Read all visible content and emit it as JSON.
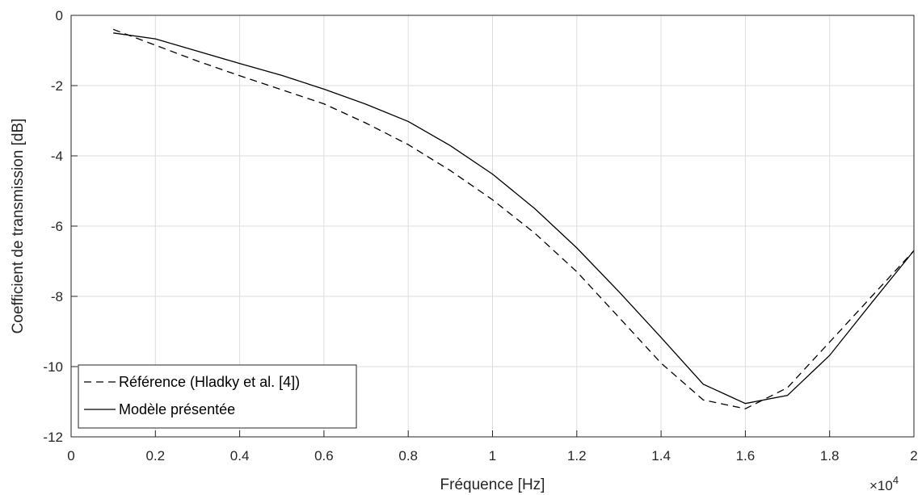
{
  "chart_data": {
    "type": "line",
    "title": "",
    "xlabel": "Fréquence [Hz]",
    "ylabel": "Coefficient de transmission [dB]",
    "xlim": [
      0,
      2
    ],
    "ylim": [
      -12,
      0
    ],
    "x_multiplier_label": "×10",
    "x_multiplier_exponent": "4",
    "x_ticks": [
      0,
      0.2,
      0.4,
      0.6,
      0.8,
      1,
      1.2,
      1.4,
      1.6,
      1.8,
      2
    ],
    "x_tick_labels": [
      "0",
      "0.2",
      "0.4",
      "0.6",
      "0.8",
      "1",
      "1.2",
      "1.4",
      "1.6",
      "1.8",
      "2"
    ],
    "y_ticks": [
      0,
      -2,
      -4,
      -6,
      -8,
      -10,
      -12
    ],
    "y_tick_labels": [
      "0",
      "-2",
      "-4",
      "-6",
      "-8",
      "-10",
      "-12"
    ],
    "grid": true,
    "legend_position": "bottom-left",
    "series": [
      {
        "name": "Référence (Hladky et al. [4])",
        "style": "dashed",
        "color": "#000000",
        "x": [
          0.1,
          0.2,
          0.3,
          0.4,
          0.5,
          0.6,
          0.7,
          0.8,
          0.9,
          1.0,
          1.1,
          1.2,
          1.3,
          1.4,
          1.5,
          1.6,
          1.7,
          1.8,
          1.9,
          2.0
        ],
        "y": [
          -0.4,
          -0.85,
          -1.3,
          -1.72,
          -2.12,
          -2.52,
          -3.07,
          -3.68,
          -4.42,
          -5.25,
          -6.2,
          -7.3,
          -8.6,
          -9.9,
          -10.95,
          -11.2,
          -10.6,
          -9.3,
          -8.0,
          -6.7
        ]
      },
      {
        "name": "Modèle présentée",
        "style": "solid",
        "color": "#000000",
        "x": [
          0.1,
          0.2,
          0.3,
          0.4,
          0.5,
          0.6,
          0.7,
          0.8,
          0.9,
          1.0,
          1.1,
          1.2,
          1.3,
          1.4,
          1.5,
          1.6,
          1.7,
          1.8,
          1.9,
          2.0
        ],
        "y": [
          -0.5,
          -0.67,
          -1.02,
          -1.37,
          -1.71,
          -2.1,
          -2.53,
          -3.02,
          -3.71,
          -4.52,
          -5.5,
          -6.62,
          -7.87,
          -9.17,
          -10.5,
          -11.05,
          -10.82,
          -9.68,
          -8.18,
          -6.7
        ]
      }
    ]
  }
}
